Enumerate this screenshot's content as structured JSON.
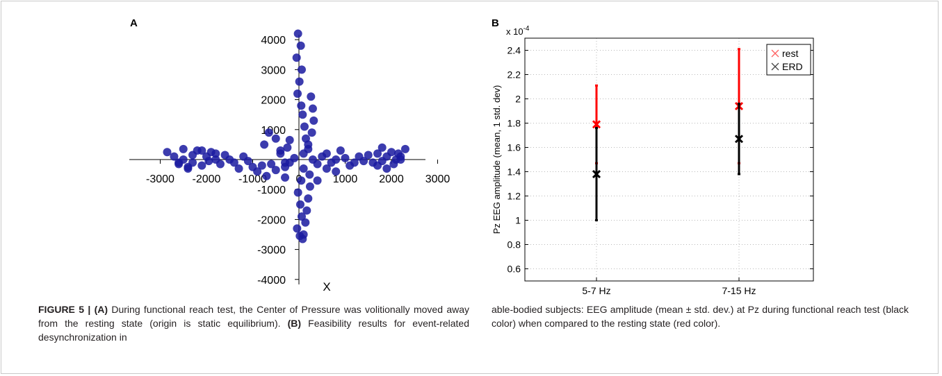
{
  "panels": {
    "a_letter": "A",
    "b_letter": "B"
  },
  "chart_data": [
    {
      "type": "scatter",
      "panel": "A",
      "xlabel": "X",
      "xlim": [
        -3500,
        3500
      ],
      "ylim": [
        -4300,
        4500
      ],
      "x_ticks": [
        "-3000",
        "-2000",
        "-1000",
        "0",
        "1000",
        "2000",
        "3000"
      ],
      "y_ticks": [
        "4000",
        "3000",
        "2000",
        "1000",
        "-1000",
        "-2000",
        "-3000",
        "-4000"
      ],
      "marker_color": "#1a1aa0",
      "x": [
        -2850,
        -2700,
        -2600,
        -2500,
        -2400,
        -2300,
        -2200,
        -2100,
        -2000,
        -1900,
        -1800,
        -1700,
        -1600,
        -1500,
        -1400,
        -1300,
        -1200,
        -1100,
        -1000,
        -900,
        -800,
        -700,
        -600,
        -500,
        -400,
        -300,
        -200,
        -100,
        100,
        200,
        300,
        400,
        500,
        600,
        700,
        800,
        900,
        1000,
        1100,
        1200,
        1300,
        1400,
        1500,
        1600,
        1700,
        1800,
        1900,
        2000,
        2100,
        2200,
        2300,
        -20,
        40,
        -50,
        60,
        10,
        -30,
        50,
        80,
        120,
        150,
        260,
        300,
        320,
        280,
        200,
        100,
        50,
        -20,
        30,
        60,
        -40,
        20,
        80,
        100,
        140,
        170,
        200,
        240,
        230,
        -2500,
        -2300,
        -2100,
        -2600,
        -2400,
        -1950,
        -1800,
        -750,
        -650,
        -500,
        -400,
        -300,
        -250,
        -200,
        1900,
        2050,
        2150,
        1800,
        1700,
        2200,
        -300,
        400,
        600,
        800
      ],
      "y": [
        250,
        100,
        -150,
        0,
        -300,
        -100,
        300,
        -200,
        100,
        250,
        0,
        -150,
        150,
        0,
        -100,
        -300,
        100,
        -50,
        -250,
        -400,
        -200,
        -550,
        -150,
        -350,
        200,
        -250,
        -100,
        50,
        200,
        350,
        0,
        -150,
        100,
        -300,
        -100,
        0,
        300,
        50,
        -200,
        -100,
        100,
        -50,
        150,
        -100,
        200,
        -50,
        -300,
        250,
        0,
        100,
        350,
        4200,
        3800,
        3400,
        3000,
        2600,
        2200,
        1800,
        1500,
        1100,
        700,
        2100,
        1700,
        1300,
        900,
        500,
        -300,
        -700,
        -1100,
        -1500,
        -1900,
        -2300,
        -2550,
        -2650,
        -2500,
        -2100,
        -1700,
        -1300,
        -900,
        -500,
        350,
        150,
        300,
        -100,
        -250,
        -50,
        200,
        500,
        900,
        700,
        300,
        -100,
        400,
        650,
        100,
        -150,
        200,
        400,
        -200,
        0,
        -600,
        -700,
        200,
        -400
      ]
    },
    {
      "type": "errorbar",
      "panel": "B",
      "categories": [
        "5-7 Hz",
        "7-15 Hz"
      ],
      "ylabel": "Pz EEG amplitude (mean, 1 std. dev)",
      "scale_label": "x 10",
      "scale_exponent": "-4",
      "ylim": [
        0.5,
        2.5
      ],
      "y_ticks": [
        "2.4",
        "2.2",
        "2",
        "1.8",
        "1.6",
        "1.4",
        "1.2",
        "1",
        "0.8",
        "0.6"
      ],
      "grid": true,
      "legend_position": "top-right",
      "series": [
        {
          "name": "rest",
          "color": "#ff0000",
          "means": [
            1.79,
            1.94
          ],
          "std": [
            0.32,
            0.47
          ]
        },
        {
          "name": "ERD",
          "color": "#000000",
          "means": [
            1.38,
            1.67
          ],
          "std": [
            0.38,
            0.29
          ]
        }
      ]
    }
  ],
  "caption": {
    "figure_label": "FIGURE 5 | ",
    "a_label": "(A)",
    "a_text": " During functional reach test, the Center of Pressure was volitionally moved away from the resting state (origin is static equilibrium). ",
    "b_label": "(B)",
    "b_text_part1": " Feasibility results for event-related desynchronization in ",
    "b_text_part2": "able-bodied subjects: EEG amplitude (mean ± std. dev.) at Pz during functional reach test (black color) when compared to the resting state (red color)."
  }
}
